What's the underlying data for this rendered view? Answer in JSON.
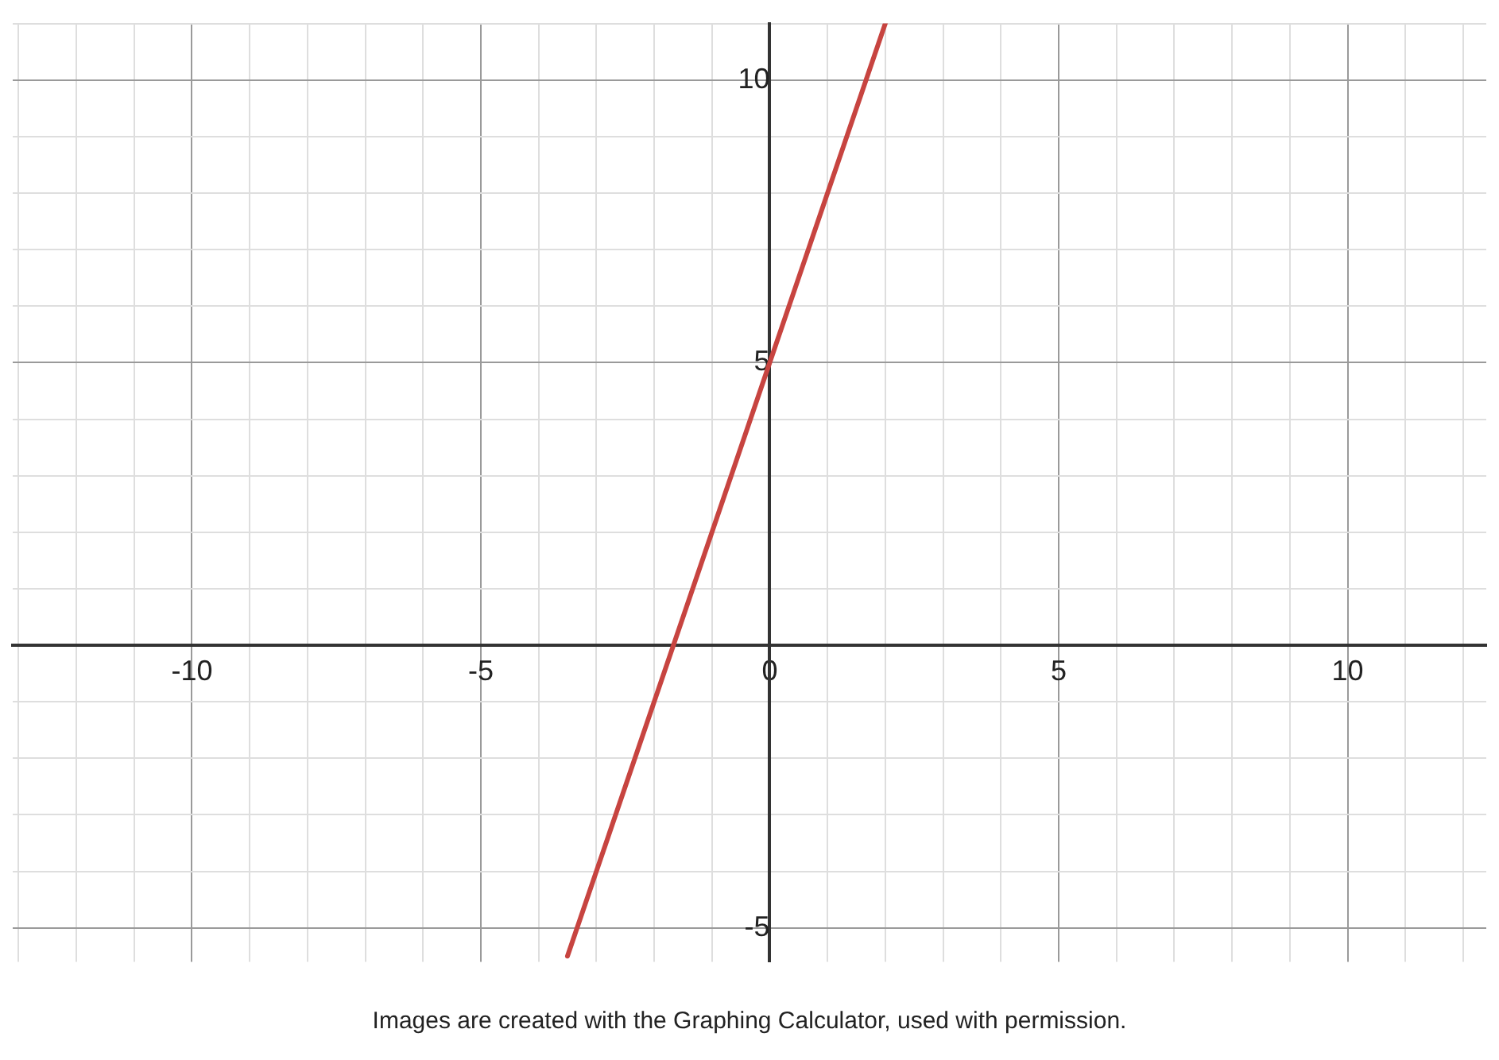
{
  "chart_data": {
    "type": "line",
    "series": [
      {
        "color": "#c74440",
        "x": [
          -3.5,
          2
        ],
        "values": [
          -5.5,
          11
        ]
      }
    ],
    "xlim": [
      -13.1,
      12.4
    ],
    "ylim": [
      -5.6,
      11
    ],
    "xticks": [
      {
        "value": -13,
        "label": null
      },
      {
        "value": -12,
        "label": null
      },
      {
        "value": -11,
        "label": null
      },
      -10,
      {
        "value": -9,
        "label": null
      },
      {
        "value": -8,
        "label": null
      },
      {
        "value": -7,
        "label": null
      },
      {
        "value": -6,
        "label": null
      },
      -5,
      {
        "value": -4,
        "label": null
      },
      {
        "value": -3,
        "label": null
      },
      {
        "value": -2,
        "label": null
      },
      {
        "value": -1,
        "label": null
      },
      0,
      {
        "value": 1,
        "label": null
      },
      {
        "value": 2,
        "label": null
      },
      {
        "value": 3,
        "label": null
      },
      {
        "value": 4,
        "label": null
      },
      5,
      {
        "value": 6,
        "label": null
      },
      {
        "value": 7,
        "label": null
      },
      {
        "value": 8,
        "label": null
      },
      {
        "value": 9,
        "label": null
      },
      10,
      {
        "value": 11,
        "label": null
      },
      {
        "value": 12,
        "label": null
      }
    ],
    "yticks": [
      -5,
      {
        "value": -4,
        "label": null
      },
      {
        "value": -3,
        "label": null
      },
      {
        "value": -2,
        "label": null
      },
      {
        "value": -1,
        "label": null
      },
      {
        "value": 0,
        "label": null
      },
      {
        "value": 1,
        "label": null
      },
      {
        "value": 2,
        "label": null
      },
      {
        "value": 3,
        "label": null
      },
      {
        "value": 4,
        "label": null
      },
      5,
      {
        "value": 6,
        "label": null
      },
      {
        "value": 7,
        "label": null
      },
      {
        "value": 8,
        "label": null
      },
      {
        "value": 9,
        "label": null
      },
      10,
      {
        "value": 11,
        "label": null
      }
    ],
    "grid": true,
    "legend": false,
    "marker": "none",
    "line_style": "solid",
    "annotations": [
      "Images are created with the Graphing Calculator, used with permission."
    ]
  }
}
